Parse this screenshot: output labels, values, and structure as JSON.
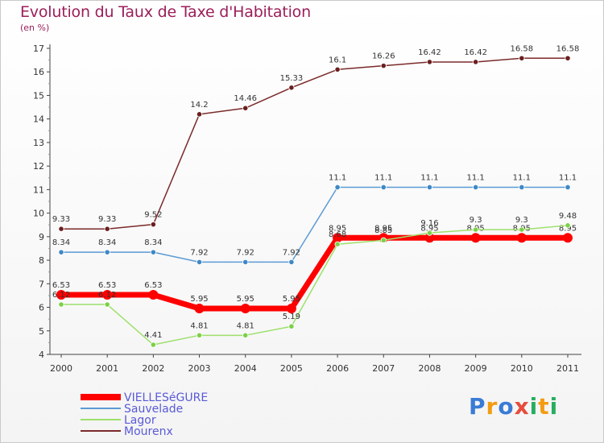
{
  "title": "Evolution du Taux de Taxe d'Habitation",
  "subtitle": "(en %)",
  "logo": {
    "text": "Proxiti",
    "letters": [
      {
        "ch": "P",
        "color": "#3a7bd5"
      },
      {
        "ch": "r",
        "color": "#f39c12"
      },
      {
        "ch": "o",
        "color": "#3a7bd5"
      },
      {
        "ch": "x",
        "color": "#e74c3c"
      },
      {
        "ch": "i",
        "color": "#27ae60"
      },
      {
        "ch": "t",
        "color": "#f39c12"
      },
      {
        "ch": "i",
        "color": "#27ae60"
      }
    ]
  },
  "chart_data": {
    "type": "line",
    "title": "Evolution du Taux de Taxe d'Habitation",
    "ylabel": "(en %)",
    "x": [
      "2000",
      "2001",
      "2002",
      "2003",
      "2004",
      "2005",
      "2006",
      "2007",
      "2008",
      "2009",
      "2010",
      "2011"
    ],
    "ylim": [
      4,
      17
    ],
    "yticks": [
      "4",
      "5",
      "6",
      "7",
      "8",
      "9",
      "10",
      "11",
      "12",
      "13",
      "14",
      "15",
      "16",
      "17"
    ],
    "grid": false,
    "legend": "bottom-left",
    "series": [
      {
        "name": "VIELLESéGURE",
        "color": "#ff0000",
        "marker_color": "#ff0000",
        "width": 7,
        "marker_r": 6,
        "values": [
          6.53,
          6.53,
          6.53,
          5.95,
          5.95,
          5.95,
          8.95,
          8.95,
          8.95,
          8.95,
          8.95,
          8.95
        ],
        "labels": [
          "6.53",
          "6.53",
          "6.53",
          "5.95",
          "5.95",
          "5.95",
          "8.95",
          "8.95",
          "8.95",
          "8.95",
          "8.95",
          "8.95"
        ]
      },
      {
        "name": "Sauvelade",
        "color": "#5b9bd5",
        "marker_color": "#3f88c5",
        "width": 1.5,
        "marker_r": 3.2,
        "values": [
          8.34,
          8.34,
          8.34,
          7.92,
          7.92,
          7.92,
          11.1,
          11.1,
          11.1,
          11.1,
          11.1,
          11.1
        ],
        "labels": [
          "8.34",
          "8.34",
          "8.34",
          "7.92",
          "7.92",
          "7.92",
          "11.1",
          "11.1",
          "11.1",
          "11.1",
          "11.1",
          "11.1"
        ]
      },
      {
        "name": "Lagor",
        "color": "#9ee06b",
        "marker_color": "#7bd146",
        "width": 1.5,
        "marker_r": 3.2,
        "values": [
          6.12,
          6.12,
          4.41,
          4.81,
          4.81,
          5.19,
          8.68,
          8.85,
          9.16,
          9.3,
          9.3,
          9.48
        ],
        "labels": [
          "6.12",
          "6.12",
          "4.41",
          "4.81",
          "4.81",
          "5.19",
          "8.68",
          "8.85",
          "9.16",
          "9.3",
          "9.3",
          "9.48"
        ]
      },
      {
        "name": "Mourenx",
        "color": "#7b2a2a",
        "marker_color": "#6b1f1f",
        "width": 1.5,
        "marker_r": 3.2,
        "values": [
          9.33,
          9.33,
          9.52,
          14.2,
          14.46,
          15.33,
          16.1,
          16.26,
          16.42,
          16.42,
          16.58,
          16.58
        ],
        "labels": [
          "9.33",
          "9.33",
          "9.52",
          "14.2",
          "14.46",
          "15.33",
          "16.1",
          "16.26",
          "16.42",
          "16.42",
          "16.58",
          "16.58"
        ]
      }
    ]
  }
}
